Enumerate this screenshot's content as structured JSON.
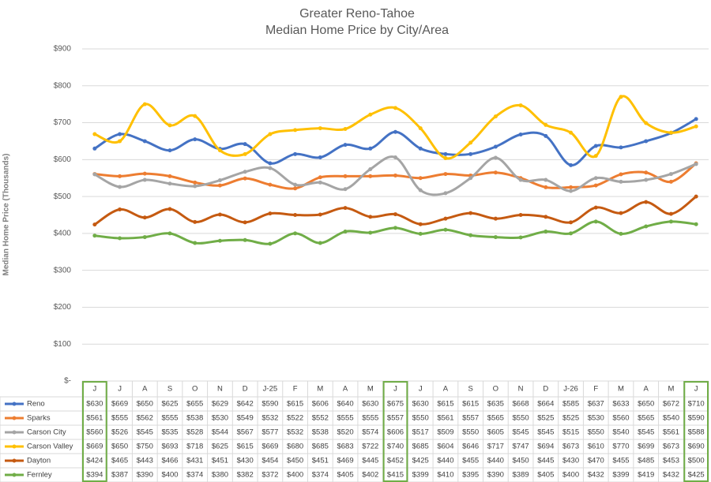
{
  "chart_data": {
    "type": "line",
    "title": "Greater Reno-Tahoe",
    "subtitle": "Median Home Price by City/Area",
    "y_label": "Median Home Price (Thousands)",
    "categories": [
      "J",
      "J",
      "A",
      "S",
      "O",
      "N",
      "D",
      "J-25",
      "F",
      "M",
      "A",
      "M",
      "J",
      "J",
      "A",
      "S",
      "O",
      "N",
      "D",
      "J-26",
      "F",
      "M",
      "A",
      "M",
      "J"
    ],
    "ylim": [
      0,
      900
    ],
    "yticks": [
      {
        "value": 0,
        "label": "$-"
      },
      {
        "value": 100,
        "label": "$100"
      },
      {
        "value": 200,
        "label": "$200"
      },
      {
        "value": 300,
        "label": "$300"
      },
      {
        "value": 400,
        "label": "$400"
      },
      {
        "value": 500,
        "label": "$500"
      },
      {
        "value": 600,
        "label": "$600"
      },
      {
        "value": 700,
        "label": "$700"
      },
      {
        "value": 800,
        "label": "$800"
      },
      {
        "value": 900,
        "label": "$900"
      }
    ],
    "grid": true,
    "series": [
      {
        "name": "Reno",
        "color": "#4472c4",
        "values": [
          630,
          669,
          650,
          625,
          655,
          629,
          642,
          590,
          615,
          606,
          640,
          630,
          675,
          630,
          615,
          615,
          635,
          668,
          664,
          585,
          637,
          633,
          650,
          672,
          710
        ],
        "value_labels": [
          "$630",
          "$669",
          "$650",
          "$625",
          "$655",
          "$629",
          "$642",
          "$590",
          "$615",
          "$606",
          "$640",
          "$630",
          "$675",
          "$630",
          "$615",
          "$615",
          "$635",
          "$668",
          "$664",
          "$585",
          "$637",
          "$633",
          "$650",
          "$672",
          "$710"
        ]
      },
      {
        "name": "Sparks",
        "color": "#ed7d31",
        "values": [
          561,
          555,
          562,
          555,
          538,
          530,
          549,
          532,
          522,
          552,
          555,
          555,
          557,
          550,
          561,
          557,
          565,
          550,
          525,
          525,
          530,
          560,
          565,
          540,
          590
        ],
        "value_labels": [
          "$561",
          "$555",
          "$562",
          "$555",
          "$538",
          "$530",
          "$549",
          "$532",
          "$522",
          "$552",
          "$555",
          "$555",
          "$557",
          "$550",
          "$561",
          "$557",
          "$565",
          "$550",
          "$525",
          "$525",
          "$530",
          "$560",
          "$565",
          "$540",
          "$590"
        ]
      },
      {
        "name": "Carson City",
        "color": "#a5a5a5",
        "values": [
          560,
          526,
          545,
          535,
          528,
          544,
          567,
          577,
          532,
          538,
          520,
          574,
          606,
          517,
          509,
          550,
          605,
          545,
          545,
          515,
          550,
          540,
          545,
          561,
          588
        ],
        "value_labels": [
          "$560",
          "$526",
          "$545",
          "$535",
          "$528",
          "$544",
          "$567",
          "$577",
          "$532",
          "$538",
          "$520",
          "$574",
          "$606",
          "$517",
          "$509",
          "$550",
          "$605",
          "$545",
          "$545",
          "$515",
          "$550",
          "$540",
          "$545",
          "$561",
          "$588"
        ]
      },
      {
        "name": "Carson Valley",
        "color": "#ffc000",
        "values": [
          669,
          650,
          750,
          693,
          718,
          625,
          615,
          669,
          680,
          685,
          683,
          722,
          740,
          685,
          604,
          646,
          717,
          747,
          694,
          673,
          610,
          770,
          699,
          673,
          690
        ],
        "value_labels": [
          "$669",
          "$650",
          "$750",
          "$693",
          "$718",
          "$625",
          "$615",
          "$669",
          "$680",
          "$685",
          "$683",
          "$722",
          "$740",
          "$685",
          "$604",
          "$646",
          "$717",
          "$747",
          "$694",
          "$673",
          "$610",
          "$770",
          "$699",
          "$673",
          "$690"
        ]
      },
      {
        "name": "Dayton",
        "color": "#c55a11",
        "values": [
          424,
          465,
          443,
          466,
          431,
          451,
          430,
          454,
          450,
          451,
          469,
          445,
          452,
          425,
          440,
          455,
          440,
          450,
          445,
          430,
          470,
          455,
          485,
          453,
          500
        ],
        "value_labels": [
          "$424",
          "$465",
          "$443",
          "$466",
          "$431",
          "$451",
          "$430",
          "$454",
          "$450",
          "$451",
          "$469",
          "$445",
          "$452",
          "$425",
          "$440",
          "$455",
          "$440",
          "$450",
          "$445",
          "$430",
          "$470",
          "$455",
          "$485",
          "$453",
          "$500"
        ]
      },
      {
        "name": "Fernley",
        "color": "#70ad47",
        "values": [
          394,
          387,
          390,
          400,
          374,
          380,
          382,
          372,
          400,
          374,
          405,
          402,
          415,
          399,
          410,
          395,
          390,
          389,
          405,
          400,
          432,
          399,
          419,
          432,
          425
        ],
        "value_labels": [
          "$394",
          "$387",
          "$390",
          "$400",
          "$374",
          "$380",
          "$382",
          "$372",
          "$400",
          "$374",
          "$405",
          "$402",
          "$415",
          "$399",
          "$410",
          "$395",
          "$390",
          "$389",
          "$405",
          "$400",
          "$432",
          "$399",
          "$419",
          "$432",
          "$425"
        ]
      }
    ]
  }
}
